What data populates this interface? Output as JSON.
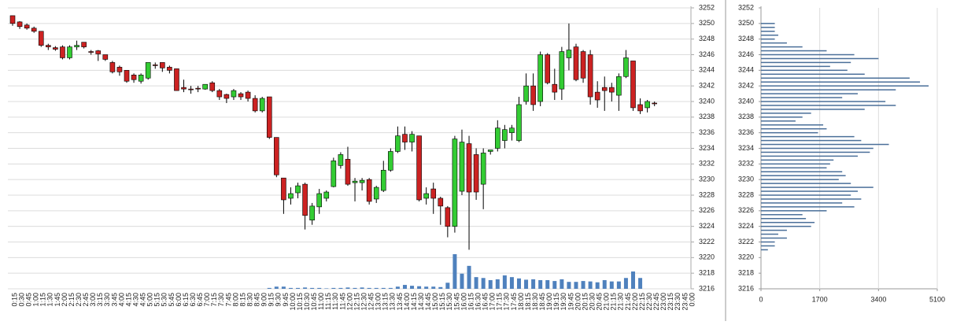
{
  "chart_data": [
    {
      "type": "candlestick",
      "categories": [
        "0:15",
        "0:30",
        "0:45",
        "1:00",
        "1:15",
        "1:30",
        "1:45",
        "2:00",
        "2:15",
        "2:30",
        "2:45",
        "3:00",
        "3:15",
        "3:30",
        "3:45",
        "4:00",
        "4:15",
        "4:30",
        "4:45",
        "5:00",
        "5:15",
        "5:30",
        "5:45",
        "6:00",
        "6:15",
        "6:30",
        "6:45",
        "7:00",
        "7:15",
        "7:30",
        "7:45",
        "8:00",
        "8:15",
        "8:30",
        "8:45",
        "9:00",
        "9:15",
        "9:30",
        "9:45",
        "10:00",
        "10:15",
        "10:30",
        "10:45",
        "11:00",
        "11:15",
        "11:30",
        "11:45",
        "12:00",
        "12:15",
        "12:30",
        "12:45",
        "13:00",
        "13:15",
        "13:30",
        "13:45",
        "14:00",
        "14:15",
        "14:30",
        "14:45",
        "15:00",
        "15:15",
        "15:30",
        "15:45",
        "16:00",
        "16:15",
        "16:30",
        "16:45",
        "17:00",
        "17:15",
        "17:30",
        "17:45",
        "18:00",
        "18:15",
        "18:30",
        "18:45",
        "19:00",
        "19:15",
        "19:30",
        "19:45",
        "20:00",
        "20:15",
        "20:30",
        "20:45",
        "21:00",
        "21:15",
        "21:30",
        "21:45",
        "22:00",
        "22:15",
        "22:30",
        "22:45",
        "23:00",
        "23:15",
        "23:30",
        "23:45",
        "0:00"
      ],
      "open": [
        3251,
        3250.2,
        3249.8,
        3249.4,
        3249,
        3247.2,
        3246.9,
        3247,
        3245.6,
        3247,
        3247.6,
        3246.4,
        3246.5,
        3246,
        3245,
        3244.4,
        3244,
        3243.4,
        3242.6,
        3243,
        3244.7,
        3245,
        3244.4,
        3244.2,
        3241.8,
        3241.6,
        3241.7,
        3241.6,
        3242.4,
        3241.4,
        3240.9,
        3240.6,
        3241,
        3241.2,
        3240.4,
        3238.8,
        3240.6,
        3235.4,
        3230.2,
        3227.6,
        3228.3,
        3229.4,
        3224.8,
        3226.5,
        3227.6,
        3229.1,
        3231.8,
        3232.6,
        3229.6,
        3229.6,
        3230,
        3227.5,
        3228.6,
        3231.2,
        3233.6,
        3235.8,
        3234.8,
        3235.6,
        3227.6,
        3228.8,
        3227.6,
        3226.4,
        3224,
        3228.5,
        3234.6,
        3233.2,
        3229.4,
        3233.6,
        3234,
        3235,
        3236,
        3235,
        3240,
        3242,
        3240,
        3246,
        3242.2,
        3241.6,
        3245.6,
        3247,
        3246.4,
        3246,
        3241.2,
        3241.8,
        3241.8,
        3240.8,
        3243.2,
        3245.2,
        3239.6,
        3239.2,
        3239.8,
        null,
        null,
        null,
        null,
        null
      ],
      "high": [
        3251,
        3250.3,
        3250,
        3249.6,
        3249,
        3247.4,
        3247.1,
        3247.2,
        3247.2,
        3247.8,
        3247.6,
        3246.6,
        3246.6,
        3246,
        3245.2,
        3244.6,
        3244,
        3243.6,
        3243.6,
        3245,
        3245,
        3245,
        3244.6,
        3244.2,
        3242.8,
        3242,
        3242,
        3242.2,
        3242.6,
        3241.6,
        3241,
        3241.6,
        3241.2,
        3241.4,
        3240.8,
        3240.6,
        3240.6,
        3235.4,
        3230.2,
        3229,
        3229.6,
        3229.6,
        3227,
        3228.8,
        3228.6,
        3232.8,
        3233.5,
        3234.2,
        3230.2,
        3230.2,
        3230.2,
        3229.2,
        3232.4,
        3234,
        3236.8,
        3236.8,
        3236.2,
        3235.6,
        3229,
        3229.6,
        3227.8,
        3226.6,
        3235.6,
        3236.4,
        3235.6,
        3234,
        3234,
        3233.8,
        3237.6,
        3237,
        3237,
        3240.6,
        3243.6,
        3243.6,
        3246.4,
        3246.2,
        3244.2,
        3247,
        3250,
        3247.4,
        3246.6,
        3246.6,
        3242.6,
        3243.2,
        3242.4,
        3243.6,
        3246.6,
        3245.2,
        3240.4,
        3240.2,
        3240,
        null,
        null,
        null,
        null,
        null
      ],
      "low": [
        3249.7,
        3249.3,
        3249.2,
        3248.8,
        3247,
        3246.6,
        3246.5,
        3245.4,
        3245.4,
        3246.6,
        3246.8,
        3246,
        3245.2,
        3245.2,
        3243.6,
        3243.3,
        3242.4,
        3242.4,
        3242.3,
        3242.8,
        3244.2,
        3243.8,
        3243.6,
        3241.4,
        3241.2,
        3241,
        3241.2,
        3241.5,
        3241.2,
        3240.2,
        3239.8,
        3240.2,
        3240.2,
        3240,
        3238.6,
        3238.6,
        3235.2,
        3230.3,
        3225.6,
        3226.8,
        3227.6,
        3223.6,
        3224.2,
        3225.6,
        3227.2,
        3229,
        3231.4,
        3229.2,
        3227.2,
        3228.6,
        3226.8,
        3227,
        3228.4,
        3231,
        3233.4,
        3233.8,
        3233.6,
        3227.2,
        3226.8,
        3225.6,
        3224.2,
        3222.6,
        3223.2,
        3228,
        3221,
        3227.4,
        3226.2,
        3233.2,
        3233.6,
        3234,
        3235,
        3234.8,
        3239.6,
        3238.8,
        3239.4,
        3242.2,
        3240.2,
        3240.2,
        3244,
        3242.6,
        3242.4,
        3239.6,
        3239.2,
        3238.8,
        3240,
        3238.8,
        3243,
        3238.8,
        3238.4,
        3238.6,
        3239.4,
        null,
        null,
        null,
        null,
        null
      ],
      "close": [
        3250,
        3249.6,
        3249.4,
        3249,
        3247.2,
        3247,
        3246.7,
        3245.6,
        3247,
        3247.2,
        3247,
        3246.3,
        3246.1,
        3245.4,
        3243.8,
        3243.8,
        3242.6,
        3242.8,
        3243.4,
        3245,
        3244.6,
        3244.3,
        3244,
        3241.4,
        3241.6,
        3241.5,
        3241.6,
        3242.2,
        3241.4,
        3240.6,
        3240.4,
        3241.4,
        3240.6,
        3240.4,
        3238.8,
        3240.4,
        3235.4,
        3230.6,
        3227.4,
        3228.2,
        3229.2,
        3225.4,
        3226.6,
        3228.2,
        3228.4,
        3232.4,
        3233.2,
        3229.4,
        3229.8,
        3229.9,
        3227.2,
        3229,
        3231.2,
        3233.6,
        3235.6,
        3234.8,
        3235.8,
        3227.4,
        3228.2,
        3227.6,
        3226.6,
        3224,
        3235.2,
        3234.8,
        3228.4,
        3228.4,
        3233.4,
        3233.8,
        3236.6,
        3236.4,
        3236.6,
        3239.6,
        3242,
        3239.6,
        3246,
        3242.4,
        3241.2,
        3246.4,
        3246.6,
        3242.8,
        3243,
        3240.6,
        3240.2,
        3241.4,
        3241.2,
        3243.2,
        3245.6,
        3239.2,
        3238.8,
        3240,
        3239.7,
        null,
        null,
        null,
        null,
        null
      ],
      "volume": [
        null,
        null,
        null,
        null,
        null,
        null,
        null,
        null,
        null,
        null,
        null,
        null,
        null,
        null,
        null,
        null,
        null,
        null,
        null,
        null,
        null,
        null,
        null,
        null,
        null,
        null,
        null,
        null,
        null,
        null,
        null,
        null,
        null,
        null,
        null,
        null,
        2,
        5,
        5,
        2,
        2,
        3,
        2,
        2,
        1,
        2,
        2,
        3,
        2,
        3,
        2,
        2,
        2,
        2,
        5,
        9,
        7,
        6,
        5,
        5,
        4,
        14,
        80,
        35,
        53,
        27,
        25,
        20,
        22,
        31,
        27,
        24,
        21,
        22,
        20,
        20,
        18,
        22,
        16,
        16,
        18,
        17,
        15,
        20,
        17,
        17,
        25,
        40,
        25,
        null,
        null,
        null,
        null,
        null,
        null,
        null
      ],
      "up_color": "#33cc33",
      "down_color": "#cc2222",
      "volume_color": "#4f81bd",
      "ylim": [
        3216,
        3252
      ],
      "yticks": [
        3216,
        3218,
        3220,
        3222,
        3224,
        3226,
        3228,
        3230,
        3232,
        3234,
        3236,
        3238,
        3240,
        3242,
        3244,
        3246,
        3248,
        3250,
        3252
      ],
      "grid": true
    },
    {
      "type": "barh",
      "y": [
        3250,
        3249.5,
        3249,
        3248.5,
        3248,
        3247.5,
        3247,
        3246.5,
        3246,
        3245.5,
        3245,
        3244.5,
        3244,
        3243.5,
        3243,
        3242.5,
        3242,
        3241.5,
        3241,
        3240.5,
        3240,
        3239.5,
        3239,
        3238.5,
        3238,
        3237.5,
        3237,
        3236.5,
        3236,
        3235.5,
        3235,
        3234.5,
        3234,
        3233.5,
        3233,
        3232.5,
        3232,
        3231.5,
        3231,
        3230.5,
        3230,
        3229.5,
        3229,
        3228.5,
        3228,
        3227.5,
        3227,
        3226.5,
        3226,
        3225.5,
        3225,
        3224.5,
        3224,
        3223.5,
        3223,
        3222.5,
        3222,
        3221.5,
        3221
      ],
      "values": [
        400,
        400,
        400,
        500,
        400,
        750,
        1200,
        1900,
        2700,
        3400,
        2600,
        2000,
        2500,
        3000,
        4300,
        4600,
        4850,
        3900,
        2800,
        2350,
        3600,
        3900,
        3000,
        1450,
        1200,
        1000,
        1800,
        1900,
        1650,
        2700,
        2900,
        3700,
        3250,
        3150,
        2800,
        2100,
        2000,
        1900,
        2350,
        2450,
        2250,
        2600,
        3250,
        2800,
        2600,
        2900,
        2350,
        2700,
        1900,
        1200,
        1300,
        1550,
        1450,
        750,
        500,
        750,
        400,
        400,
        200
      ],
      "color": "#4a6f99",
      "xlim": [
        0,
        5100
      ],
      "xticks": [
        0,
        1700,
        3400,
        5100
      ],
      "ylim": [
        3216,
        3252
      ],
      "yticks": [
        3216,
        3218,
        3220,
        3222,
        3224,
        3226,
        3228,
        3230,
        3232,
        3234,
        3236,
        3238,
        3240,
        3242,
        3244,
        3246,
        3248,
        3250,
        3252
      ],
      "grid": true
    }
  ]
}
